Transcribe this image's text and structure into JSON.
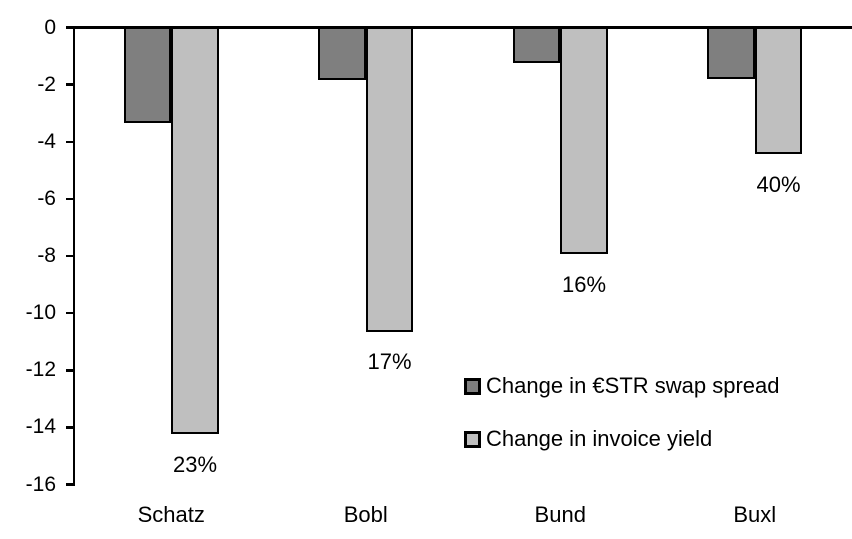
{
  "chart_data": {
    "type": "bar",
    "title": "",
    "xlabel": "",
    "ylabel": "",
    "categories": [
      "Schatz",
      "Bobl",
      "Bund",
      "Buxl"
    ],
    "series": [
      {
        "name": "Change in €STR swap spread",
        "color": "#7f7f7f",
        "values": [
          -3.3,
          -1.8,
          -1.2,
          -1.75
        ]
      },
      {
        "name": "Change in invoice yield",
        "color": "#bfbfbf",
        "values": [
          -14.2,
          -10.6,
          -7.9,
          -4.4
        ]
      }
    ],
    "data_labels": {
      "series_index": 1,
      "values": [
        "23%",
        "17%",
        "16%",
        "40%"
      ]
    },
    "y_axis": {
      "min": -16,
      "max": 0,
      "tick_step": 2,
      "ticks": [
        0,
        -2,
        -4,
        -6,
        -8,
        -10,
        -12,
        -14,
        -16
      ]
    },
    "legend": {
      "position": "inside-bottom-right"
    },
    "grid": false,
    "bar_outline_color": "#000000",
    "axis_color": "#000000",
    "background_color": "#ffffff"
  }
}
